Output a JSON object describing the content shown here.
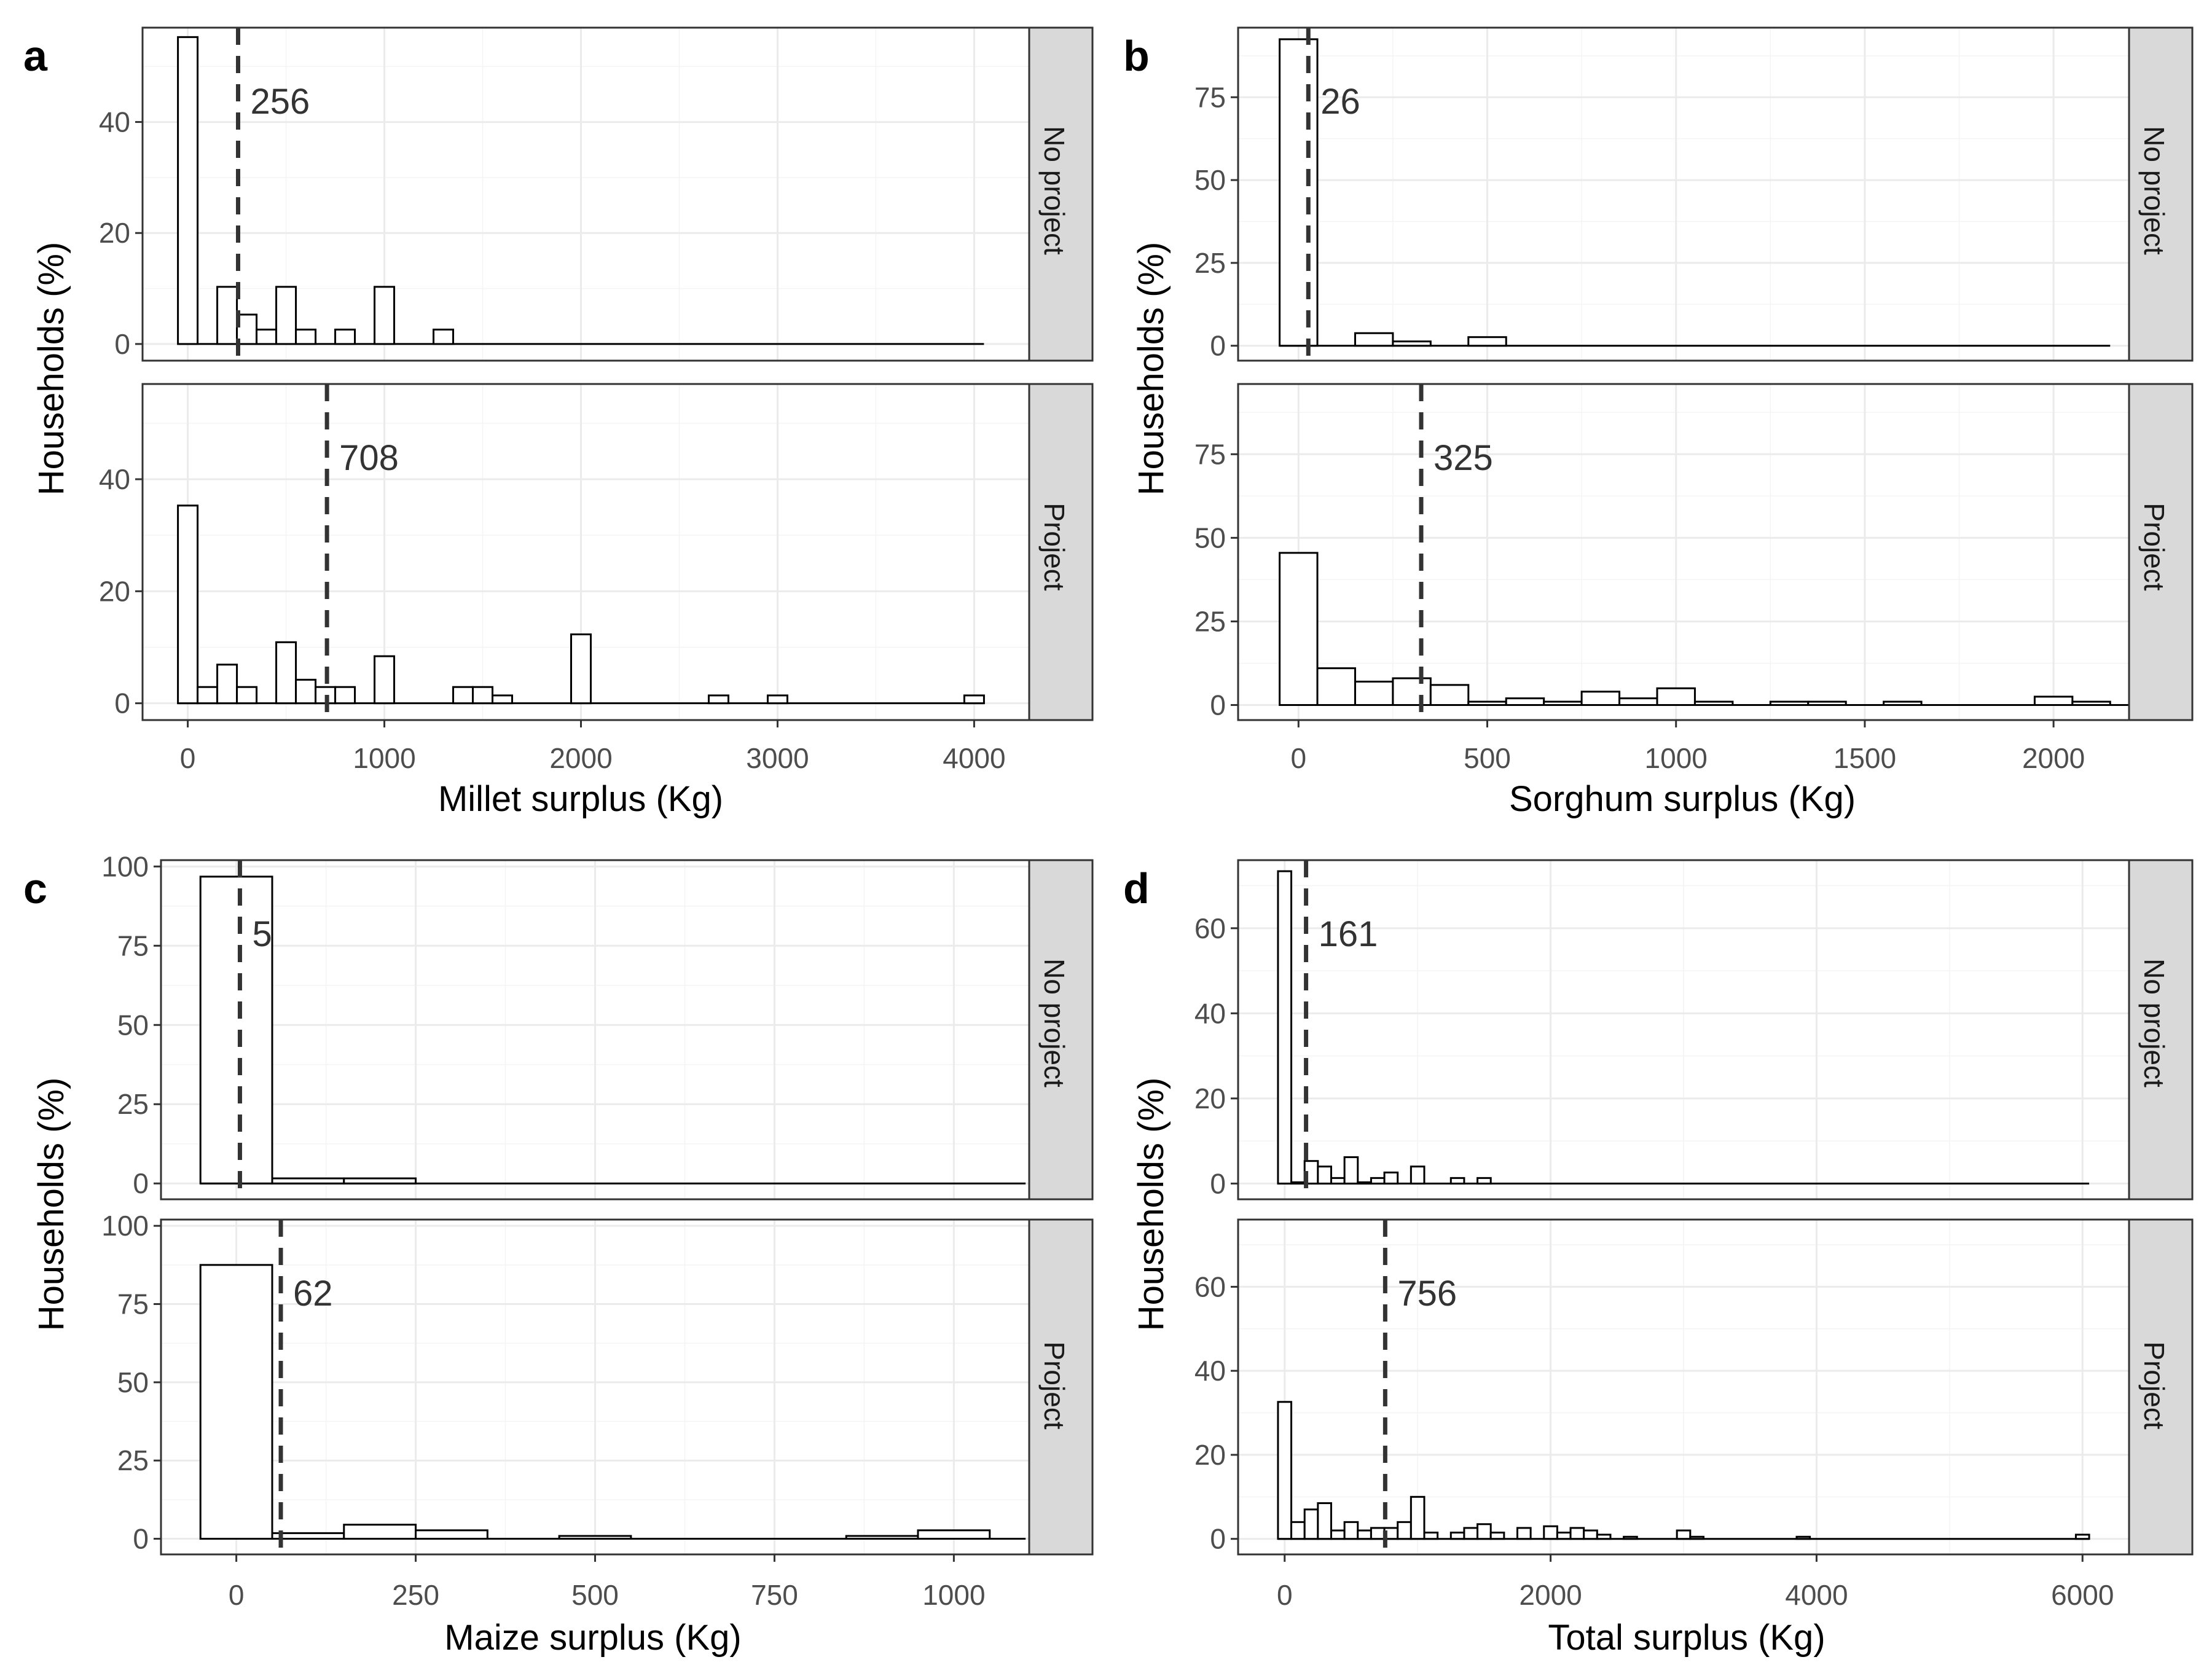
{
  "colors": {
    "strip_fill": "#d9d9d9",
    "bar_fill": "#ffffff",
    "bar_stroke": "#000000",
    "grid": "#ebebeb",
    "median_line": "#333333"
  },
  "chart_data": [
    {
      "type": "histogram",
      "panel_label": "a",
      "xlabel": "Millet surplus (Kg)",
      "ylabel": "Households (%)",
      "xlim": [
        -230,
        4280
      ],
      "xticks": [
        0,
        1000,
        2000,
        3000,
        4000
      ],
      "xtick_labels": [
        "0",
        "1000",
        "2000",
        "3000",
        "4000"
      ],
      "facets": [
        {
          "strip": "No project",
          "ylim": [
            -3,
            57
          ],
          "yticks": [
            0,
            20,
            40
          ],
          "ytick_labels": [
            "0",
            "20",
            "40"
          ],
          "median": 256,
          "median_label": "256",
          "bin_width": 100,
          "bins": [
            [
              0,
              55.3
            ],
            [
              200,
              10.3
            ],
            [
              300,
              5.3
            ],
            [
              400,
              2.6
            ],
            [
              500,
              10.3
            ],
            [
              600,
              2.6
            ],
            [
              800,
              2.6
            ],
            [
              1000,
              10.3
            ],
            [
              1300,
              2.6
            ]
          ],
          "baseline_to": 4000
        },
        {
          "strip": "Project",
          "ylim": [
            -3,
            57
          ],
          "yticks": [
            0,
            20,
            40
          ],
          "ytick_labels": [
            "0",
            "20",
            "40"
          ],
          "median": 708,
          "median_label": "708",
          "bin_width": 100,
          "bins": [
            [
              0,
              35.3
            ],
            [
              100,
              2.9
            ],
            [
              200,
              6.9
            ],
            [
              300,
              2.9
            ],
            [
              500,
              10.9
            ],
            [
              600,
              4.2
            ],
            [
              700,
              2.9
            ],
            [
              800,
              2.9
            ],
            [
              1000,
              8.4
            ],
            [
              1400,
              2.9
            ],
            [
              1500,
              2.9
            ],
            [
              1600,
              1.4
            ],
            [
              2000,
              12.3
            ],
            [
              2700,
              1.4
            ],
            [
              3000,
              1.4
            ],
            [
              4000,
              1.4
            ]
          ],
          "baseline_to": 4000
        }
      ]
    },
    {
      "type": "histogram",
      "panel_label": "b",
      "xlabel": "Sorghum surplus (Kg)",
      "ylabel": "Households (%)",
      "xlim": [
        -160,
        2200
      ],
      "xticks": [
        0,
        500,
        1000,
        1500,
        2000
      ],
      "xtick_labels": [
        "0",
        "500",
        "1000",
        "1500",
        "2000"
      ],
      "facets": [
        {
          "strip": "No project",
          "ylim": [
            -4.5,
            96
          ],
          "yticks": [
            0,
            25,
            50,
            75
          ],
          "ytick_labels": [
            "0",
            "25",
            "50",
            "75"
          ],
          "median": 26,
          "median_label": "26",
          "bin_width": 100,
          "bins": [
            [
              0,
              92.5
            ],
            [
              200,
              3.8
            ],
            [
              300,
              1.3
            ],
            [
              500,
              2.6
            ]
          ],
          "baseline_to": 2100
        },
        {
          "strip": "Project",
          "ylim": [
            -4.5,
            96
          ],
          "yticks": [
            0,
            25,
            50,
            75
          ],
          "ytick_labels": [
            "0",
            "25",
            "50",
            "75"
          ],
          "median": 325,
          "median_label": "325",
          "bin_width": 100,
          "bins": [
            [
              0,
              45.5
            ],
            [
              100,
              11
            ],
            [
              200,
              7
            ],
            [
              300,
              8
            ],
            [
              400,
              6
            ],
            [
              500,
              1
            ],
            [
              600,
              2
            ],
            [
              700,
              1
            ],
            [
              800,
              4
            ],
            [
              900,
              2
            ],
            [
              1000,
              5
            ],
            [
              1100,
              1
            ],
            [
              1300,
              1
            ],
            [
              1400,
              1
            ],
            [
              1600,
              1
            ],
            [
              2000,
              2.5
            ],
            [
              2100,
              1
            ]
          ],
          "baseline_to": 2150
        }
      ]
    },
    {
      "type": "histogram",
      "panel_label": "c",
      "xlabel": "Maize surplus (Kg)",
      "ylabel": "Households (%)",
      "xlim": [
        -105,
        1105
      ],
      "xticks": [
        0,
        250,
        500,
        750,
        1000
      ],
      "xtick_labels": [
        "0",
        "250",
        "500",
        "750",
        "1000"
      ],
      "facets": [
        {
          "strip": "No project",
          "ylim": [
            -5,
            102
          ],
          "yticks": [
            0,
            25,
            50,
            75,
            100
          ],
          "ytick_labels": [
            "0",
            "25",
            "50",
            "75",
            "100"
          ],
          "median": 5,
          "median_label": "5",
          "bin_width": 100,
          "bins": [
            [
              0,
              96.8
            ],
            [
              100,
              1.6
            ],
            [
              200,
              1.6
            ]
          ],
          "baseline_to": 1050
        },
        {
          "strip": "Project",
          "ylim": [
            -5,
            102
          ],
          "yticks": [
            0,
            25,
            50,
            75,
            100
          ],
          "ytick_labels": [
            "0",
            "25",
            "50",
            "75",
            "100"
          ],
          "median": 62,
          "median_label": "62",
          "bin_width": 100,
          "bins": [
            [
              0,
              87.5
            ],
            [
              100,
              1.8
            ],
            [
              200,
              4.5
            ],
            [
              300,
              2.7
            ],
            [
              500,
              0.9
            ],
            [
              900,
              0.9
            ],
            [
              1000,
              2.7
            ]
          ],
          "baseline_to": 1050
        }
      ]
    },
    {
      "type": "histogram",
      "panel_label": "d",
      "xlabel": "Total surplus (Kg)",
      "ylabel": "Households (%)",
      "xlim": [
        -350,
        6350
      ],
      "xticks": [
        0,
        2000,
        4000,
        6000
      ],
      "xtick_labels": [
        "0",
        "2000",
        "4000",
        "6000"
      ],
      "facets": [
        {
          "strip": "No project",
          "ylim": [
            -3.7,
            76
          ],
          "yticks": [
            0,
            20,
            40,
            60
          ],
          "ytick_labels": [
            "0",
            "20",
            "40",
            "60"
          ],
          "median": 161,
          "median_label": "161",
          "bin_width": 100,
          "bins": [
            [
              0,
              73.4
            ],
            [
              100,
              0.3
            ],
            [
              200,
              5.3
            ],
            [
              300,
              4
            ],
            [
              400,
              1.3
            ],
            [
              500,
              6.2
            ],
            [
              600,
              0.3
            ],
            [
              700,
              1.3
            ],
            [
              800,
              2.6
            ],
            [
              1000,
              4
            ],
            [
              1300,
              1.3
            ],
            [
              1500,
              1.3
            ]
          ],
          "baseline_to": 6000
        },
        {
          "strip": "Project",
          "ylim": [
            -3.7,
            76
          ],
          "yticks": [
            0,
            20,
            40,
            60
          ],
          "ytick_labels": [
            "0",
            "20",
            "40",
            "60"
          ],
          "median": 756,
          "median_label": "756",
          "bin_width": 100,
          "bins": [
            [
              0,
              32.6
            ],
            [
              100,
              4
            ],
            [
              200,
              7
            ],
            [
              300,
              8.5
            ],
            [
              400,
              2
            ],
            [
              500,
              4
            ],
            [
              600,
              2
            ],
            [
              700,
              2.6
            ],
            [
              800,
              2.6
            ],
            [
              900,
              4
            ],
            [
              1000,
              10
            ],
            [
              1100,
              1.5
            ],
            [
              1300,
              1.5
            ],
            [
              1400,
              2.6
            ],
            [
              1500,
              3.5
            ],
            [
              1600,
              1.5
            ],
            [
              1800,
              2.6
            ],
            [
              2000,
              3
            ],
            [
              2100,
              1.5
            ],
            [
              2200,
              2.6
            ],
            [
              2300,
              2
            ],
            [
              2400,
              1
            ],
            [
              2600,
              0.5
            ],
            [
              3000,
              2
            ],
            [
              3100,
              0.5
            ],
            [
              3900,
              0.5
            ],
            [
              6000,
              1
            ]
          ],
          "baseline_to": 6000
        }
      ]
    }
  ]
}
